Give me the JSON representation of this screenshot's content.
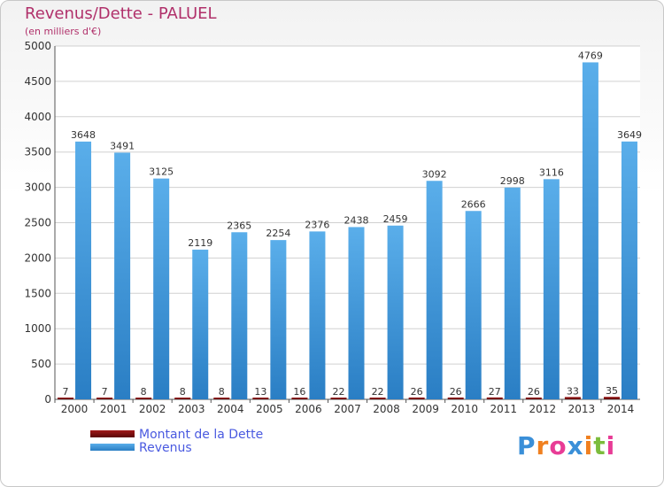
{
  "chart_data": {
    "type": "bar",
    "title": "Revenus/Dette - PALUEL",
    "subtitle": "(en milliers d'€)",
    "categories": [
      "2000",
      "2001",
      "2002",
      "2003",
      "2004",
      "2005",
      "2006",
      "2007",
      "2008",
      "2009",
      "2010",
      "2011",
      "2012",
      "2013",
      "2014"
    ],
    "series": [
      {
        "name": "Montant de la Dette",
        "color": "#6b0a0a",
        "values": [
          7,
          7,
          8,
          8,
          8,
          13,
          16,
          22,
          22,
          26,
          26,
          27,
          26,
          33,
          35
        ]
      },
      {
        "name": "Revenus",
        "color": "#4a9fe0",
        "values": [
          3648,
          3491,
          3125,
          2119,
          2365,
          2254,
          2376,
          2438,
          2459,
          3092,
          2666,
          2998,
          3116,
          4769,
          3649
        ]
      }
    ],
    "ylim": [
      0,
      5000
    ],
    "yticks": [
      0,
      500,
      1000,
      1500,
      2000,
      2500,
      3000,
      3500,
      4000,
      4500,
      5000
    ],
    "grid": true,
    "legend_position": "bottom-left"
  },
  "brand": {
    "logo_text": "Proxiti",
    "letters": [
      {
        "ch": "P",
        "color": "#3a8fd8"
      },
      {
        "ch": "r",
        "color": "#f08020"
      },
      {
        "ch": "o",
        "color": "#e83c96"
      },
      {
        "ch": "x",
        "color": "#3a8fd8"
      },
      {
        "ch": "i",
        "color": "#f08020"
      },
      {
        "ch": "t",
        "color": "#7cbc3c"
      },
      {
        "ch": "i",
        "color": "#e83c96"
      }
    ]
  }
}
